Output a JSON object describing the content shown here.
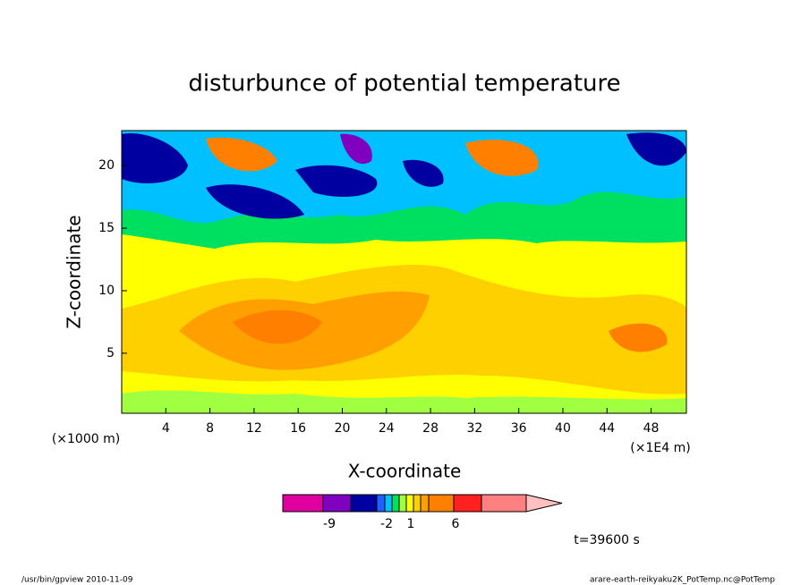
{
  "chart_data": {
    "type": "contour",
    "title": "disturbunce of potential temperature",
    "xlabel": "X-coordinate",
    "ylabel": "Z-coordinate",
    "x_unit_label": "(×1000 m)",
    "x_scale_label": "(×1E4 m)",
    "xlim": [
      0,
      51.2
    ],
    "xticks": [
      4,
      8,
      12,
      16,
      20,
      24,
      28,
      32,
      36,
      40,
      44,
      48
    ],
    "ylim": [
      0.2,
      22.8
    ],
    "yticks": [
      5,
      10,
      15,
      20
    ],
    "colorbar": {
      "colors": [
        "#e000a0",
        "#8000c0",
        "#0000a0",
        "#2060ff",
        "#00c0ff",
        "#00e060",
        "#a0ff40",
        "#ffff00",
        "#ffd000",
        "#ffa000",
        "#ff8000",
        "#ff2020",
        "#ff8080",
        "#ffc0c0"
      ],
      "labels": [
        -9,
        -2,
        1,
        6
      ]
    },
    "time_label": "t=39600 s",
    "footer_left": "/usr/bin/gpview   2010-11-09",
    "footer_right": "arare-earth-reikyaku2K_PotTemp.nc@PotTemp"
  }
}
